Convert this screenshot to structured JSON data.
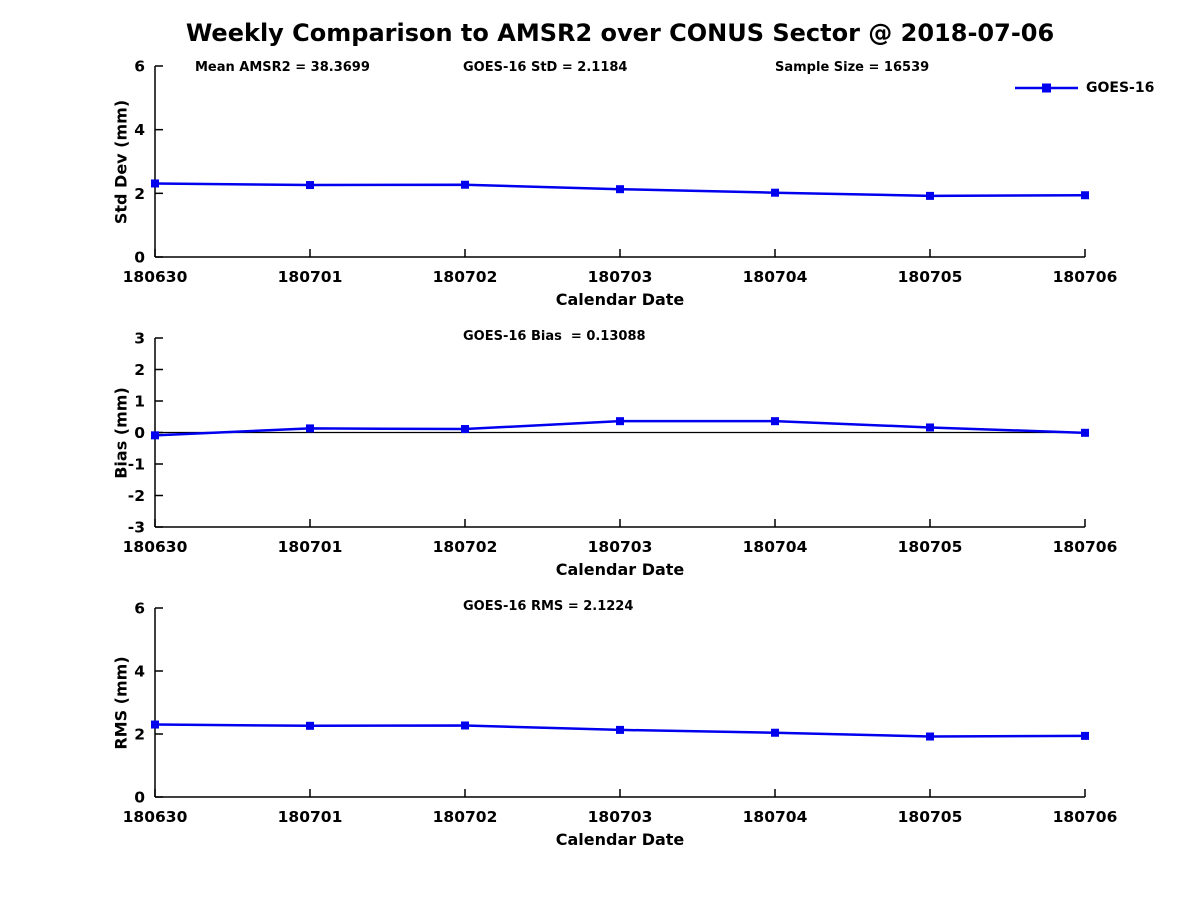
{
  "figure": {
    "title": "Weekly Comparison to AMSR2 over CONUS Sector @ 2018-07-06",
    "background_color": "#ffffff",
    "accent_color": "#0000EE"
  },
  "chart_data": [
    {
      "id": "std-dev",
      "type": "line",
      "xlabel": "Calendar Date",
      "ylabel": "Std Dev (mm)",
      "x_categories": [
        "180630",
        "180701",
        "180702",
        "180703",
        "180704",
        "180705",
        "180706"
      ],
      "series": [
        {
          "name": "GOES-16",
          "color": "#0000EE",
          "marker": "square",
          "values": [
            2.31,
            2.26,
            2.27,
            2.13,
            2.02,
            1.92,
            1.94
          ]
        }
      ],
      "ylim": [
        0,
        6
      ],
      "yticks": [
        0,
        2,
        4,
        6
      ],
      "grid": false,
      "zero_line": false,
      "annotations": [
        {
          "text": "Mean AMSR2 = 38.3699"
        },
        {
          "text": "GOES-16 StD = 2.1184"
        },
        {
          "text": "Sample Size = 16539"
        }
      ],
      "legend": {
        "visible": true,
        "label": "GOES-16",
        "position": "top-right"
      }
    },
    {
      "id": "bias",
      "type": "line",
      "xlabel": "Calendar Date",
      "ylabel": "Bias (mm)",
      "x_categories": [
        "180630",
        "180701",
        "180702",
        "180703",
        "180704",
        "180705",
        "180706"
      ],
      "series": [
        {
          "name": "GOES-16",
          "color": "#0000EE",
          "marker": "square",
          "values": [
            -0.09,
            0.13,
            0.11,
            0.36,
            0.36,
            0.16,
            -0.01
          ]
        }
      ],
      "ylim": [
        -3,
        3
      ],
      "yticks": [
        -3,
        -2,
        -1,
        0,
        1,
        2,
        3
      ],
      "grid": false,
      "zero_line": true,
      "annotations": [
        {
          "text": "GOES-16 Bias  = 0.13088"
        }
      ],
      "legend": {
        "visible": false,
        "label": "GOES-16"
      }
    },
    {
      "id": "rms",
      "type": "line",
      "xlabel": "Calendar Date",
      "ylabel": "RMS (mm)",
      "x_categories": [
        "180630",
        "180701",
        "180702",
        "180703",
        "180704",
        "180705",
        "180706"
      ],
      "series": [
        {
          "name": "GOES-16",
          "color": "#0000EE",
          "marker": "square",
          "values": [
            2.3,
            2.26,
            2.27,
            2.13,
            2.04,
            1.92,
            1.94
          ]
        }
      ],
      "ylim": [
        0,
        6
      ],
      "yticks": [
        0,
        2,
        4,
        6
      ],
      "grid": false,
      "zero_line": false,
      "annotations": [
        {
          "text": "GOES-16 RMS = 2.1224"
        }
      ],
      "legend": {
        "visible": false,
        "label": "GOES-16"
      }
    }
  ]
}
